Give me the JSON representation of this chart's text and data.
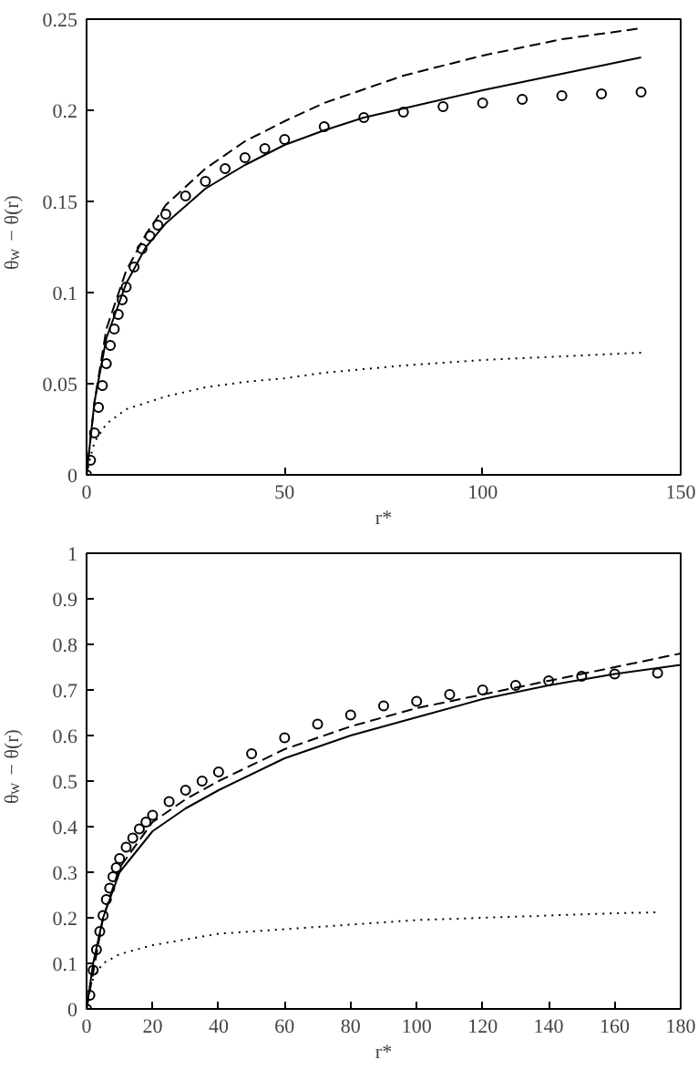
{
  "chart_data": [
    {
      "type": "line",
      "xlabel": "r*",
      "ylabel": "θ$_{w}$ − θ(r)",
      "xlim": [
        0,
        150
      ],
      "ylim": [
        0,
        0.25
      ],
      "xticks": [
        0,
        50,
        100,
        150
      ],
      "yticks": [
        0,
        0.05,
        0.1,
        0.15,
        0.2,
        0.25
      ],
      "grid": false,
      "series": [
        {
          "color": "#000000",
          "line_style": "dashed",
          "x": [
            0,
            2,
            5,
            10,
            15,
            20,
            30,
            40,
            50,
            60,
            80,
            100,
            120,
            140
          ],
          "values": [
            0,
            0.04,
            0.08,
            0.112,
            0.132,
            0.148,
            0.168,
            0.183,
            0.194,
            0.204,
            0.219,
            0.23,
            0.239,
            0.245
          ]
        },
        {
          "color": "#000000",
          "line_style": "solid",
          "x": [
            0,
            2,
            5,
            10,
            15,
            20,
            30,
            40,
            50,
            60,
            70,
            80,
            100,
            120,
            140
          ],
          "values": [
            0,
            0.04,
            0.075,
            0.105,
            0.125,
            0.138,
            0.157,
            0.17,
            0.181,
            0.189,
            0.196,
            0.201,
            0.211,
            0.22,
            0.229
          ]
        },
        {
          "color": "#000000",
          "line_style": "dotted",
          "x": [
            0,
            1,
            2,
            5,
            10,
            20,
            30,
            40,
            50,
            60,
            80,
            100,
            120,
            140
          ],
          "values": [
            0,
            0.01,
            0.018,
            0.028,
            0.036,
            0.043,
            0.048,
            0.051,
            0.053,
            0.056,
            0.06,
            0.063,
            0.065,
            0.067
          ]
        },
        {
          "type": "scatter",
          "color": "#000000",
          "marker": "circle",
          "x": [
            0,
            1,
            2,
            3,
            4,
            5,
            6,
            7,
            8,
            9,
            10,
            12,
            14,
            16,
            18,
            20,
            25,
            30,
            35,
            40,
            45,
            50,
            60,
            70,
            80,
            90,
            100,
            110,
            120,
            130,
            140
          ],
          "values": [
            0,
            0.008,
            0.023,
            0.037,
            0.049,
            0.061,
            0.071,
            0.08,
            0.088,
            0.096,
            0.103,
            0.114,
            0.124,
            0.131,
            0.137,
            0.143,
            0.153,
            0.161,
            0.168,
            0.174,
            0.179,
            0.184,
            0.191,
            0.196,
            0.199,
            0.202,
            0.204,
            0.206,
            0.208,
            0.209,
            0.21
          ]
        }
      ]
    },
    {
      "type": "line",
      "xlabel": "r*",
      "ylabel": "θ$_{w}$ − θ(r)",
      "xlim": [
        0,
        180
      ],
      "ylim": [
        0,
        1
      ],
      "xticks": [
        0,
        20,
        40,
        60,
        80,
        100,
        120,
        140,
        160,
        180
      ],
      "yticks": [
        0,
        0.1,
        0.2,
        0.3,
        0.4,
        0.5,
        0.6,
        0.7,
        0.8,
        0.9,
        1
      ],
      "grid": false,
      "series": [
        {
          "color": "#000000",
          "line_style": "dashed",
          "x": [
            0,
            5,
            10,
            20,
            30,
            40,
            60,
            80,
            100,
            120,
            140,
            160,
            180
          ],
          "values": [
            0,
            0.2,
            0.31,
            0.41,
            0.46,
            0.5,
            0.57,
            0.62,
            0.66,
            0.69,
            0.72,
            0.75,
            0.78
          ]
        },
        {
          "color": "#000000",
          "line_style": "solid",
          "x": [
            0,
            2,
            5,
            10,
            20,
            30,
            40,
            60,
            80,
            100,
            120,
            140,
            160,
            180
          ],
          "values": [
            0,
            0.1,
            0.2,
            0.3,
            0.39,
            0.44,
            0.48,
            0.55,
            0.6,
            0.64,
            0.68,
            0.71,
            0.735,
            0.755
          ]
        },
        {
          "color": "#000000",
          "line_style": "dotted",
          "x": [
            0,
            1,
            3,
            5,
            10,
            20,
            40,
            60,
            80,
            100,
            120,
            140,
            160,
            173
          ],
          "values": [
            0,
            0.05,
            0.08,
            0.1,
            0.12,
            0.14,
            0.165,
            0.175,
            0.185,
            0.195,
            0.2,
            0.205,
            0.21,
            0.212
          ]
        },
        {
          "type": "scatter",
          "color": "#000000",
          "marker": "circle",
          "x": [
            0,
            1,
            2,
            3,
            4,
            5,
            6,
            7,
            8,
            9,
            10,
            12,
            14,
            16,
            18,
            20,
            25,
            30,
            35,
            40,
            50,
            60,
            70,
            80,
            90,
            100,
            110,
            120,
            130,
            140,
            150,
            160,
            173
          ],
          "values": [
            0,
            0.03,
            0.085,
            0.13,
            0.17,
            0.205,
            0.24,
            0.265,
            0.29,
            0.31,
            0.33,
            0.355,
            0.375,
            0.395,
            0.41,
            0.425,
            0.455,
            0.48,
            0.5,
            0.52,
            0.56,
            0.595,
            0.625,
            0.645,
            0.665,
            0.675,
            0.69,
            0.7,
            0.71,
            0.72,
            0.73,
            0.735,
            0.737
          ]
        }
      ]
    }
  ]
}
